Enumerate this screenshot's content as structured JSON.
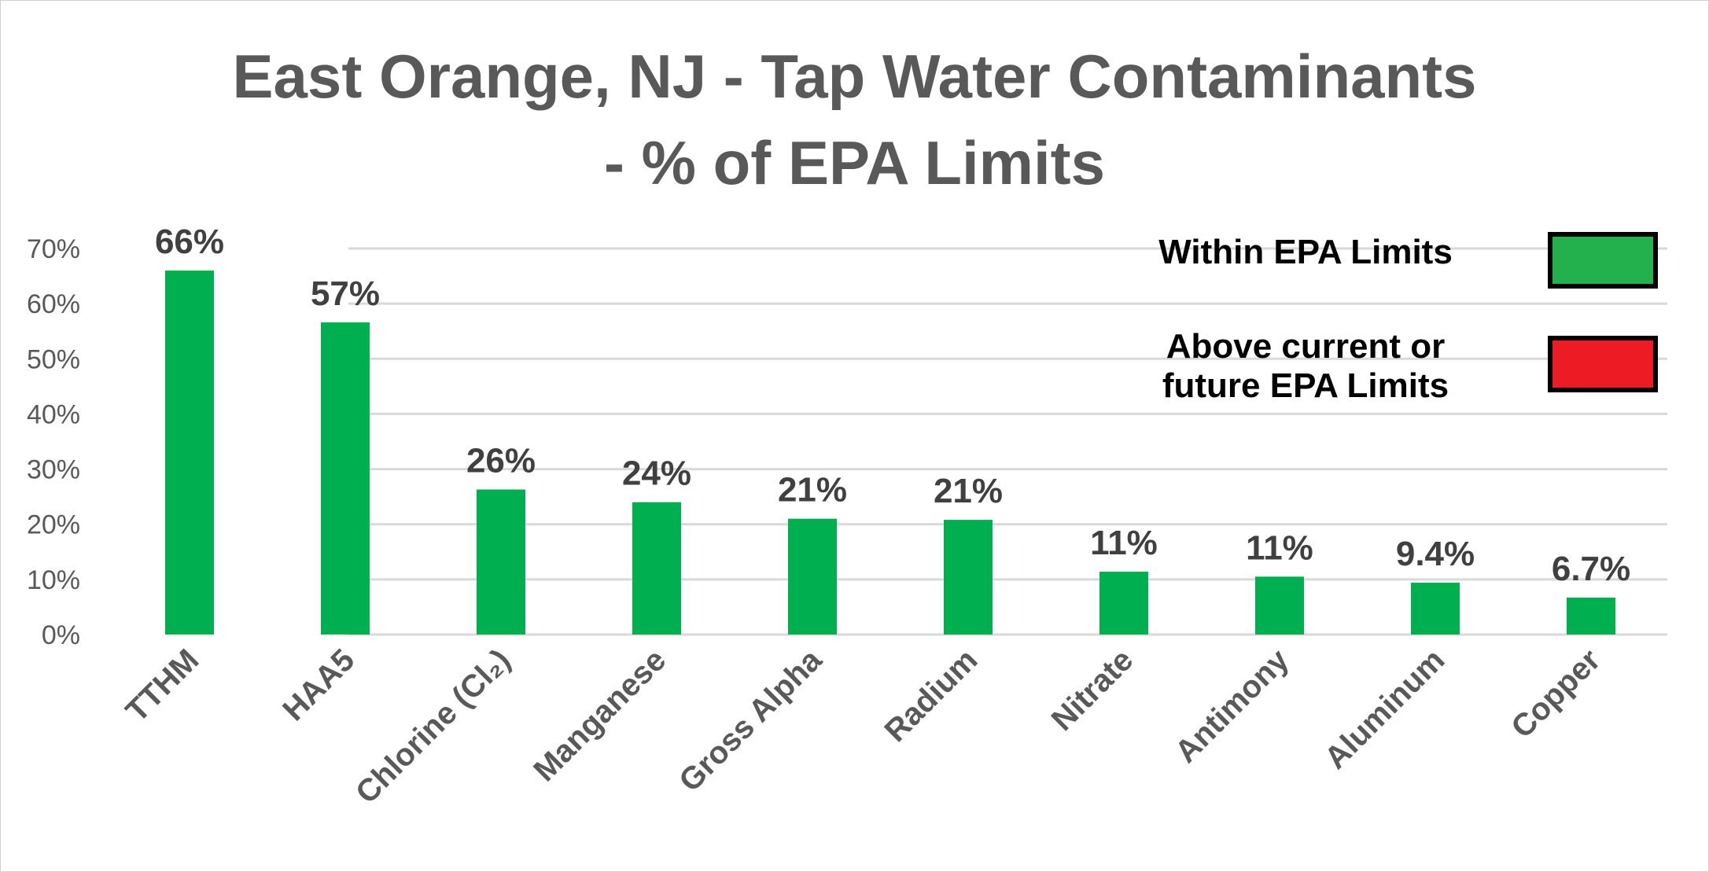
{
  "chart_data": {
    "type": "bar",
    "title_lines": [
      "East Orange, NJ - Tap Water Contaminants",
      "- % of EPA  Limits"
    ],
    "categories": [
      "TTHM",
      "HAA5",
      "Chlorine (Cl₂)",
      "Manganese",
      "Gross Alpha",
      "Radium",
      "Nitrate",
      "Antimony",
      "Aluminum",
      "Copper"
    ],
    "values": [
      66,
      56.6,
      26.3,
      24,
      21,
      20.8,
      11.4,
      10.5,
      9.4,
      6.7
    ],
    "data_labels": [
      "66%",
      "57%",
      "26%",
      "24%",
      "21%",
      "21%",
      "11%",
      "11%",
      "9.4%",
      "6.7%"
    ],
    "ylim": [
      0,
      70
    ],
    "yticks": [
      0,
      10,
      20,
      30,
      40,
      50,
      60,
      70
    ],
    "ytick_labels": [
      "0%",
      "10%",
      "20%",
      "30%",
      "40%",
      "50%",
      "60%",
      "70%"
    ],
    "grid": true,
    "bar_color": "#00b050",
    "legend": {
      "placement": "top-right",
      "entries": [
        {
          "label_lines": [
            "Within  EPA Limits"
          ],
          "color": "#22b14c"
        },
        {
          "label_lines": [
            "Above current or",
            "future EPA Limits"
          ],
          "color": "#ed1c24"
        }
      ]
    }
  }
}
